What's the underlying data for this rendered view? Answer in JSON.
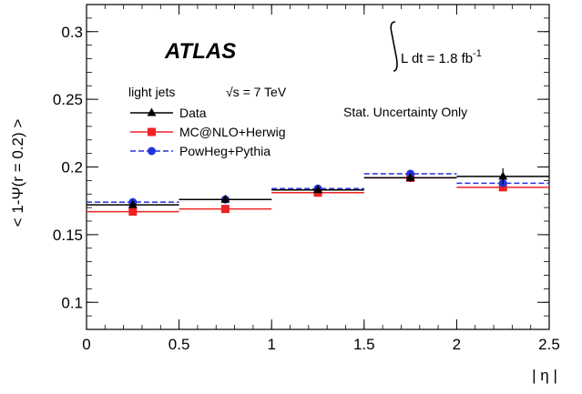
{
  "chart_data": {
    "type": "scatter",
    "xlabel": "| η |",
    "ylabel": "< 1-Ψ(r = 0.2) >",
    "xlim": [
      0,
      2.5
    ],
    "ylim": [
      0.08,
      0.32
    ],
    "x_ticks": [
      "0",
      "0.5",
      "1",
      "1.5",
      "2",
      "2.5"
    ],
    "y_ticks": [
      "0.1",
      "0.15",
      "0.2",
      "0.25",
      "0.3"
    ],
    "x_tick_values": [
      0,
      0.5,
      1,
      1.5,
      2,
      2.5
    ],
    "y_tick_values": [
      0.1,
      0.15,
      0.2,
      0.25,
      0.3
    ],
    "bin_edges": [
      0,
      0.5,
      1,
      1.5,
      2,
      2.5
    ],
    "bin_centers": [
      0.25,
      0.75,
      1.25,
      1.75,
      2.25
    ],
    "series": [
      {
        "name": "Data",
        "color": "#000000",
        "marker": "triangle",
        "line": "solid",
        "values": [
          0.172,
          0.176,
          0.183,
          0.192,
          0.193
        ],
        "errors": [
          0.002,
          0.002,
          0.002,
          0.003,
          0.006
        ]
      },
      {
        "name": "MC@NLO+Herwig",
        "color": "#ee2222",
        "marker": "square",
        "line": "solid",
        "values": [
          0.167,
          0.169,
          0.181,
          0.192,
          0.185
        ],
        "errors": [
          0.001,
          0.001,
          0.001,
          0.001,
          0.001
        ]
      },
      {
        "name": "PowHeg+Pythia",
        "color": "#2233dd",
        "marker": "circle",
        "line": "dashed",
        "values": [
          0.174,
          0.176,
          0.184,
          0.195,
          0.188
        ],
        "errors": [
          0.001,
          0.001,
          0.001,
          0.001,
          0.001
        ]
      }
    ],
    "annotations": {
      "experiment": "ATLAS",
      "luminosity": "L dt = 1.8 fb",
      "luminosity_exp": "-1",
      "sample": "light jets",
      "energy": "√s = 7 TeV",
      "uncertainty": "Stat. Uncertainty Only"
    },
    "legend_position": "top-left"
  }
}
